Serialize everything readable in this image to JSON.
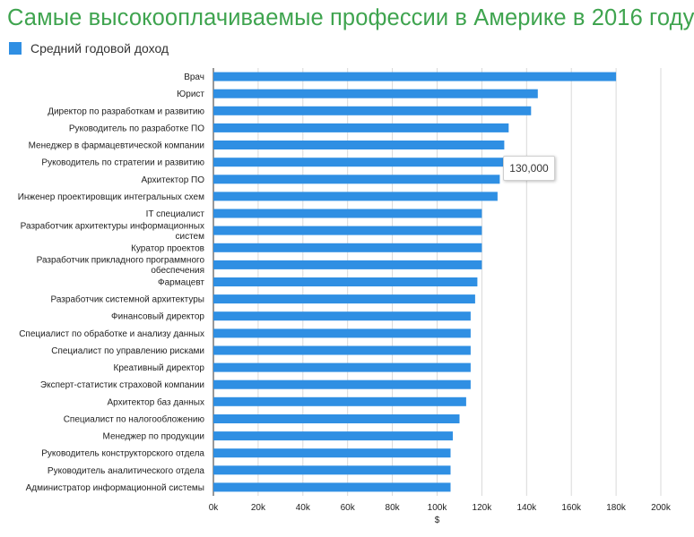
{
  "title": "Самые высокооплачиваемые профессии в Америке в 2016 году",
  "legend": {
    "label": "Средний годовой доход"
  },
  "colors": {
    "bar": "#2f8fe3",
    "title": "#3fa44f",
    "grid": "#d9d9d9"
  },
  "tooltip": {
    "text": "130,000"
  },
  "chart_data": {
    "type": "bar",
    "orientation": "horizontal",
    "title": "Самые высокооплачиваемые профессии в Америке в 2016 году",
    "xlabel": "$",
    "ylabel": "",
    "xlim": [
      0,
      200000
    ],
    "xticks": [
      0,
      20000,
      40000,
      60000,
      80000,
      100000,
      120000,
      140000,
      160000,
      180000,
      200000
    ],
    "xtick_labels": [
      "0k",
      "20k",
      "40k",
      "60k",
      "80k",
      "100k",
      "120k",
      "140k",
      "160k",
      "180k",
      "200k"
    ],
    "grid": true,
    "legend_position": "top-left",
    "categories": [
      "Врач",
      "Юрист",
      "Директор по разработкам и развитию",
      "Руководитель по разработке ПО",
      "Менеджер в фармацевтической компании",
      "Руководитель по стратегии и развитию",
      "Архитектор ПО",
      "Инженер проектировщик интегральных схем",
      "IT специалист",
      "Разработчик архитектуры информационных систем",
      "Куратор проектов",
      "Разработчик прикладного программного обеспечения",
      "Фармацевт",
      "Разработчик системной архитектуры",
      "Финансовый директор",
      "Специалист по обработке и анализу данных",
      "Специалист по управлению рисками",
      "Креативный директор",
      "Эксперт-статистик страховой компании",
      "Архитектор баз данных",
      "Специалист по налогообложению",
      "Менеджер по продукции",
      "Руководитель конструкторского отдела",
      "Руководитель аналитического отдела",
      "Администратор информационной системы"
    ],
    "label_lines": [
      [
        "Врач"
      ],
      [
        "Юрист"
      ],
      [
        "Директор по разработкам и развитию"
      ],
      [
        "Руководитель по разработке ПО"
      ],
      [
        "Менеджер в фармацевтической компании"
      ],
      [
        "Руководитель по стратегии и развитию"
      ],
      [
        "Архитектор ПО"
      ],
      [
        "Инженер проектировщик интегральных схем"
      ],
      [
        "IT специалист"
      ],
      [
        "Разработчик архитектуры информационных",
        "систем"
      ],
      [
        "Куратор проектов"
      ],
      [
        "Разработчик прикладного программного",
        "обеспечения"
      ],
      [
        "Фармацевт"
      ],
      [
        "Разработчик системной архитектуры"
      ],
      [
        "Финансовый директор"
      ],
      [
        "Специалист по обработке и анализу данных"
      ],
      [
        "Специалист по управлению рисками"
      ],
      [
        "Креативный директор"
      ],
      [
        "Эксперт-статистик страховой компании"
      ],
      [
        "Архитектор баз данных"
      ],
      [
        "Специалист по налогообложению"
      ],
      [
        "Менеджер по продукции"
      ],
      [
        "Руководитель конструкторского отдела"
      ],
      [
        "Руководитель аналитического отдела"
      ],
      [
        "Администратор информационной системы"
      ]
    ],
    "series": [
      {
        "name": "Средний годовой доход",
        "values": [
          180000,
          145000,
          142000,
          132000,
          130000,
          130000,
          128000,
          127000,
          120000,
          120000,
          120000,
          120000,
          118000,
          117000,
          115000,
          115000,
          115000,
          115000,
          115000,
          113000,
          110000,
          107000,
          106000,
          106000,
          106000
        ]
      }
    ]
  }
}
